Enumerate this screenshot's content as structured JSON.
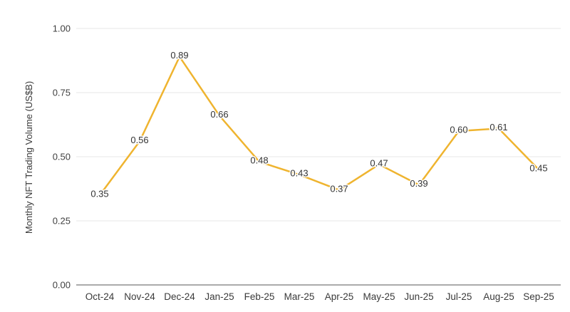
{
  "chart_data": {
    "type": "line",
    "x": [
      "Oct-24",
      "Nov-24",
      "Dec-24",
      "Jan-25",
      "Feb-25",
      "Mar-25",
      "Apr-25",
      "May-25",
      "Jun-25",
      "Jul-25",
      "Aug-25",
      "Sep-25"
    ],
    "values": [
      0.35,
      0.56,
      0.89,
      0.66,
      0.48,
      0.43,
      0.37,
      0.47,
      0.39,
      0.6,
      0.61,
      0.45
    ],
    "data_labels": [
      "0.35",
      "0.56",
      "0.89",
      "0.66",
      "0.48",
      "0.43",
      "0.37",
      "0.47",
      "0.39",
      "0.60",
      "0.61",
      "0.45"
    ],
    "title": "",
    "xlabel": "",
    "ylabel": "Monthly NFT Trading Volume (US$B)",
    "ylim": [
      0.0,
      1.0
    ],
    "yticks": [
      0.0,
      0.25,
      0.5,
      0.75,
      1.0
    ],
    "ytick_labels": [
      "0.00",
      "0.25",
      "0.50",
      "0.75",
      "1.00"
    ],
    "grid": "horizontal-only",
    "legend": "none",
    "data_labels_position": "centered-on-point-with-white-halo",
    "colors": {
      "line": "#EFB42F",
      "gridline": "#e7e7e7",
      "baseline": "#8f8f8f",
      "data_label_text": "#333333",
      "axis_text": "#3f3f3f",
      "background": "#ffffff"
    }
  }
}
